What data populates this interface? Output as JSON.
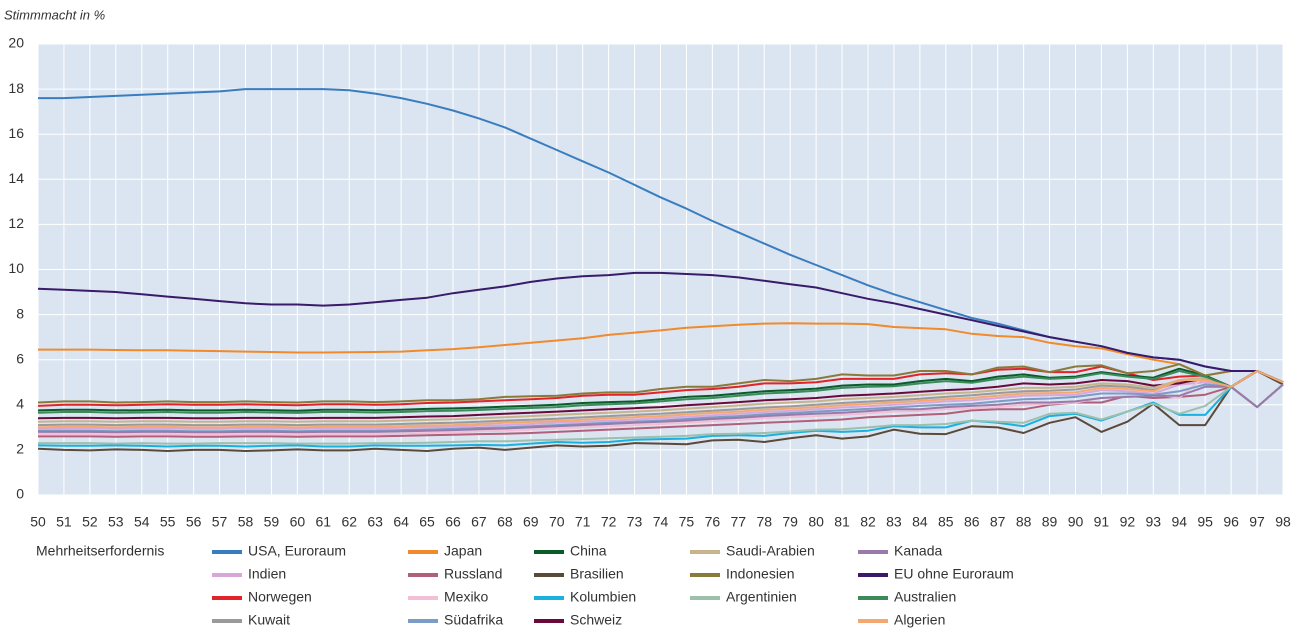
{
  "chart_data": {
    "type": "line",
    "y_label": "Stimmmacht in %",
    "legend_title": "Mehrheitserfordernis",
    "categories": [
      "50",
      "51",
      "52",
      "53",
      "54",
      "55",
      "56",
      "57",
      "58",
      "59",
      "60",
      "61",
      "62",
      "63",
      "64",
      "65",
      "66",
      "67",
      "68",
      "69",
      "70",
      "71",
      "72",
      "73",
      "74",
      "75",
      "76",
      "77",
      "78",
      "79",
      "80",
      "81",
      "82",
      "83",
      "84",
      "85",
      "86",
      "87",
      "88",
      "89",
      "90",
      "91",
      "92",
      "93",
      "94",
      "95",
      "96",
      "97",
      "98"
    ],
    "ylim": [
      0,
      20
    ],
    "yticks": [
      0,
      2,
      4,
      6,
      8,
      10,
      12,
      14,
      16,
      18,
      20
    ],
    "grid": true,
    "series": [
      {
        "name": "USA, Euroraum",
        "color": "#3a7dbf",
        "values": [
          17.6,
          17.6,
          17.65,
          17.7,
          17.75,
          17.8,
          17.85,
          17.9,
          18,
          18,
          18,
          18,
          17.95,
          17.8,
          17.6,
          17.35,
          17.05,
          16.7,
          16.3,
          15.8,
          15.3,
          14.8,
          14.3,
          13.75,
          13.2,
          12.7,
          12.15,
          11.65,
          11.15,
          10.65,
          10.2,
          9.75,
          9.3,
          8.9,
          8.55,
          8.2,
          7.85,
          7.6,
          7.3,
          7.0,
          6.8,
          6.6,
          6.3,
          6.1,
          6.0,
          5.7,
          5.5,
          5.5,
          5.0
        ]
      },
      {
        "name": "Indien",
        "color": "#d9a6d9",
        "values": [
          2.95,
          2.95,
          2.95,
          2.93,
          2.95,
          2.95,
          2.93,
          2.93,
          2.95,
          2.95,
          2.93,
          2.95,
          2.95,
          2.95,
          2.98,
          3.0,
          3.03,
          3.07,
          3.1,
          3.15,
          3.2,
          3.25,
          3.3,
          3.35,
          3.4,
          3.47,
          3.54,
          3.6,
          3.68,
          3.73,
          3.8,
          3.88,
          3.94,
          4.0,
          4.07,
          4.15,
          4.2,
          4.3,
          4.4,
          4.42,
          4.45,
          4.65,
          4.6,
          4.5,
          4.9,
          5.0,
          4.8,
          3.9,
          4.9
        ]
      },
      {
        "name": "Norwegen",
        "color": "#e0242a",
        "values": [
          3.95,
          4.0,
          4.0,
          3.98,
          4.0,
          4.02,
          4.0,
          4.0,
          4.02,
          4.0,
          3.98,
          4.02,
          4.02,
          4.0,
          4.02,
          4.08,
          4.1,
          4.15,
          4.2,
          4.25,
          4.3,
          4.4,
          4.45,
          4.45,
          4.55,
          4.65,
          4.7,
          4.8,
          4.95,
          4.95,
          5.0,
          5.15,
          5.15,
          5.15,
          5.35,
          5.4,
          5.35,
          5.55,
          5.6,
          5.45,
          5.45,
          5.7,
          5.4,
          5.1,
          5.25,
          5.3,
          4.8,
          5.5,
          5.0
        ]
      },
      {
        "name": "Kuwait",
        "color": "#9a9a9a",
        "values": [
          3.1,
          3.12,
          3.12,
          3.1,
          3.12,
          3.12,
          3.1,
          3.1,
          3.12,
          3.12,
          3.1,
          3.12,
          3.12,
          3.12,
          3.15,
          3.18,
          3.2,
          3.25,
          3.3,
          3.34,
          3.38,
          3.44,
          3.5,
          3.55,
          3.6,
          3.67,
          3.74,
          3.8,
          3.88,
          3.93,
          4.0,
          4.08,
          4.14,
          4.2,
          4.27,
          4.35,
          4.42,
          4.52,
          4.6,
          4.62,
          4.68,
          4.85,
          4.8,
          4.65,
          5.0,
          5.1,
          4.8,
          3.9,
          4.9
        ]
      },
      {
        "name": "Japan",
        "color": "#f08a2c",
        "values": [
          6.45,
          6.45,
          6.45,
          6.43,
          6.42,
          6.42,
          6.4,
          6.38,
          6.36,
          6.34,
          6.32,
          6.32,
          6.33,
          6.34,
          6.36,
          6.42,
          6.47,
          6.55,
          6.65,
          6.75,
          6.85,
          6.95,
          7.1,
          7.2,
          7.3,
          7.42,
          7.48,
          7.55,
          7.6,
          7.62,
          7.6,
          7.6,
          7.58,
          7.45,
          7.4,
          7.35,
          7.15,
          7.05,
          7.0,
          6.75,
          6.6,
          6.5,
          6.25,
          6.0,
          5.8,
          5.3,
          5.5,
          5.5,
          5.0
        ]
      },
      {
        "name": "Russland",
        "color": "#b0607a",
        "values": [
          2.6,
          2.6,
          2.6,
          2.58,
          2.6,
          2.6,
          2.58,
          2.58,
          2.6,
          2.6,
          2.58,
          2.6,
          2.6,
          2.6,
          2.62,
          2.65,
          2.67,
          2.7,
          2.72,
          2.75,
          2.8,
          2.85,
          2.9,
          2.95,
          3.0,
          3.05,
          3.1,
          3.15,
          3.2,
          3.25,
          3.3,
          3.35,
          3.45,
          3.5,
          3.55,
          3.6,
          3.75,
          3.8,
          3.8,
          4.0,
          4.1,
          4.1,
          4.4,
          4.3,
          4.35,
          4.45,
          4.8,
          3.9,
          4.9
        ]
      },
      {
        "name": "Mexiko",
        "color": "#f2bfd6",
        "values": [
          2.7,
          2.7,
          2.7,
          2.68,
          2.7,
          2.7,
          2.68,
          2.68,
          2.7,
          2.7,
          2.68,
          2.7,
          2.7,
          2.7,
          2.72,
          2.75,
          2.78,
          2.82,
          2.85,
          2.9,
          2.95,
          3.0,
          3.05,
          3.1,
          3.15,
          3.2,
          3.27,
          3.32,
          3.4,
          3.45,
          3.5,
          3.55,
          3.62,
          3.7,
          3.72,
          3.8,
          3.85,
          3.9,
          4.0,
          4.05,
          4.1,
          4.3,
          4.4,
          4.5,
          4.3,
          5.3,
          4.8,
          3.9,
          4.9
        ]
      },
      {
        "name": "Südafrika",
        "color": "#7a9cc6",
        "values": [
          2.85,
          2.85,
          2.85,
          2.83,
          2.85,
          2.85,
          2.83,
          2.83,
          2.85,
          2.85,
          2.83,
          2.85,
          2.85,
          2.85,
          2.88,
          2.9,
          2.93,
          2.97,
          3.0,
          3.05,
          3.1,
          3.15,
          3.2,
          3.25,
          3.3,
          3.37,
          3.44,
          3.5,
          3.58,
          3.63,
          3.7,
          3.76,
          3.82,
          3.88,
          3.95,
          4.0,
          4.05,
          4.15,
          4.25,
          4.28,
          4.35,
          4.5,
          4.5,
          4.45,
          4.6,
          4.9,
          4.8,
          3.9,
          4.9
        ]
      },
      {
        "name": "China",
        "color": "#0a5a2a",
        "values": [
          3.75,
          3.78,
          3.78,
          3.75,
          3.76,
          3.78,
          3.75,
          3.75,
          3.78,
          3.76,
          3.74,
          3.78,
          3.78,
          3.76,
          3.78,
          3.82,
          3.84,
          3.87,
          3.92,
          3.96,
          4.0,
          4.08,
          4.12,
          4.15,
          4.25,
          4.35,
          4.4,
          4.5,
          4.6,
          4.65,
          4.72,
          4.85,
          4.9,
          4.9,
          5.05,
          5.15,
          5.05,
          5.25,
          5.35,
          5.2,
          5.25,
          5.45,
          5.3,
          5.2,
          5.6,
          5.3,
          4.8,
          5.5,
          5.0
        ]
      },
      {
        "name": "Brasilien",
        "color": "#5a4a3a",
        "values": [
          2.05,
          2.0,
          1.98,
          2.02,
          2.0,
          1.95,
          2.0,
          2.0,
          1.95,
          1.98,
          2.02,
          1.98,
          1.98,
          2.05,
          2.0,
          1.95,
          2.05,
          2.1,
          2.0,
          2.1,
          2.2,
          2.15,
          2.18,
          2.3,
          2.28,
          2.25,
          2.42,
          2.45,
          2.35,
          2.52,
          2.65,
          2.5,
          2.6,
          2.9,
          2.72,
          2.7,
          3.05,
          3.0,
          2.75,
          3.2,
          3.45,
          2.8,
          3.25,
          4.05,
          3.1,
          3.1,
          4.8,
          5.5,
          4.9
        ]
      },
      {
        "name": "Kolumbien",
        "color": "#1ab0e0",
        "values": [
          2.2,
          2.18,
          2.18,
          2.2,
          2.18,
          2.15,
          2.18,
          2.18,
          2.15,
          2.18,
          2.2,
          2.15,
          2.15,
          2.2,
          2.18,
          2.18,
          2.2,
          2.22,
          2.2,
          2.28,
          2.35,
          2.32,
          2.35,
          2.45,
          2.48,
          2.5,
          2.62,
          2.65,
          2.62,
          2.75,
          2.85,
          2.8,
          2.85,
          3.05,
          3.0,
          3.0,
          3.3,
          3.2,
          3.05,
          3.5,
          3.6,
          3.3,
          3.7,
          4.1,
          3.55,
          3.55,
          4.8,
          3.9,
          4.9
        ]
      },
      {
        "name": "Schweiz",
        "color": "#6a0a3a",
        "values": [
          3.4,
          3.42,
          3.42,
          3.4,
          3.42,
          3.42,
          3.4,
          3.4,
          3.42,
          3.42,
          3.4,
          3.42,
          3.42,
          3.42,
          3.45,
          3.48,
          3.5,
          3.55,
          3.6,
          3.65,
          3.7,
          3.75,
          3.8,
          3.85,
          3.9,
          3.98,
          4.05,
          4.12,
          4.2,
          4.25,
          4.3,
          4.4,
          4.45,
          4.5,
          4.58,
          4.65,
          4.7,
          4.8,
          4.95,
          4.9,
          4.95,
          5.1,
          5.05,
          4.85,
          4.95,
          5.2,
          4.8,
          5.5,
          5.0
        ]
      },
      {
        "name": "Saudi-Arabien",
        "color": "#c8b48c",
        "values": [
          3.25,
          3.27,
          3.27,
          3.25,
          3.27,
          3.27,
          3.25,
          3.25,
          3.27,
          3.27,
          3.25,
          3.27,
          3.27,
          3.27,
          3.3,
          3.33,
          3.36,
          3.4,
          3.45,
          3.5,
          3.55,
          3.6,
          3.65,
          3.7,
          3.75,
          3.83,
          3.9,
          3.97,
          4.05,
          4.1,
          4.15,
          4.25,
          4.3,
          4.35,
          4.42,
          4.5,
          4.55,
          4.65,
          4.75,
          4.75,
          4.8,
          4.95,
          4.9,
          4.75,
          5.1,
          5.2,
          4.8,
          3.9,
          4.9
        ]
      },
      {
        "name": "Indonesien",
        "color": "#8a7a3a",
        "values": [
          4.1,
          4.15,
          4.15,
          4.1,
          4.12,
          4.15,
          4.12,
          4.12,
          4.15,
          4.12,
          4.1,
          4.15,
          4.15,
          4.12,
          4.15,
          4.2,
          4.2,
          4.25,
          4.35,
          4.38,
          4.4,
          4.5,
          4.55,
          4.55,
          4.7,
          4.8,
          4.8,
          4.95,
          5.1,
          5.05,
          5.15,
          5.35,
          5.3,
          5.3,
          5.5,
          5.5,
          5.35,
          5.65,
          5.7,
          5.45,
          5.7,
          5.75,
          5.4,
          5.5,
          5.8,
          5.3,
          5.5,
          5.5,
          5.0
        ]
      },
      {
        "name": "Argentinien",
        "color": "#9cc0ac",
        "values": [
          2.3,
          2.3,
          2.3,
          2.28,
          2.3,
          2.28,
          2.28,
          2.3,
          2.3,
          2.3,
          2.28,
          2.28,
          2.28,
          2.3,
          2.3,
          2.32,
          2.35,
          2.38,
          2.38,
          2.42,
          2.45,
          2.48,
          2.52,
          2.55,
          2.58,
          2.62,
          2.7,
          2.72,
          2.75,
          2.82,
          2.9,
          2.92,
          3.0,
          3.1,
          3.1,
          3.15,
          3.3,
          3.25,
          3.2,
          3.6,
          3.65,
          3.35,
          3.7,
          4.05,
          3.6,
          3.95,
          4.8,
          3.9,
          4.9
        ]
      },
      {
        "name": "Kanada",
        "color": "#9a7aaa",
        "values": [
          2.8,
          2.8,
          2.8,
          2.78,
          2.8,
          2.8,
          2.78,
          2.78,
          2.8,
          2.8,
          2.78,
          2.8,
          2.8,
          2.8,
          2.82,
          2.85,
          2.88,
          2.92,
          2.95,
          3.0,
          3.05,
          3.1,
          3.15,
          3.2,
          3.25,
          3.3,
          3.37,
          3.42,
          3.5,
          3.55,
          3.6,
          3.65,
          3.72,
          3.8,
          3.8,
          3.9,
          3.95,
          4.0,
          4.1,
          4.1,
          4.15,
          4.3,
          4.35,
          4.4,
          4.4,
          4.8,
          4.8,
          3.9,
          4.9
        ]
      },
      {
        "name": "EU ohne Euroraum",
        "color": "#3a1a6a",
        "values": [
          9.15,
          9.1,
          9.05,
          9.0,
          8.9,
          8.8,
          8.7,
          8.6,
          8.5,
          8.45,
          8.45,
          8.4,
          8.45,
          8.55,
          8.65,
          8.75,
          8.95,
          9.1,
          9.25,
          9.45,
          9.6,
          9.7,
          9.75,
          9.85,
          9.85,
          9.8,
          9.75,
          9.65,
          9.5,
          9.35,
          9.2,
          8.95,
          8.7,
          8.5,
          8.25,
          8.0,
          7.75,
          7.5,
          7.25,
          7.0,
          6.8,
          6.6,
          6.3,
          6.1,
          6.0,
          5.7,
          5.5,
          5.5,
          5.0
        ]
      },
      {
        "name": "Australien",
        "color": "#3a8a5a",
        "values": [
          3.65,
          3.68,
          3.68,
          3.65,
          3.66,
          3.68,
          3.65,
          3.65,
          3.68,
          3.66,
          3.64,
          3.68,
          3.68,
          3.66,
          3.68,
          3.72,
          3.74,
          3.77,
          3.82,
          3.86,
          3.9,
          3.98,
          4.02,
          4.06,
          4.15,
          4.25,
          4.3,
          4.4,
          4.5,
          4.55,
          4.62,
          4.75,
          4.8,
          4.82,
          4.95,
          5.05,
          4.98,
          5.15,
          5.25,
          5.15,
          5.2,
          5.4,
          5.25,
          5.15,
          5.5,
          5.25,
          4.8,
          5.5,
          5.0
        ]
      },
      {
        "name": "Algerien",
        "color": "#f4a870",
        "values": [
          3.0,
          3.02,
          3.02,
          3.0,
          3.02,
          3.02,
          3.0,
          3.0,
          3.02,
          3.02,
          3.0,
          3.02,
          3.02,
          3.02,
          3.05,
          3.08,
          3.1,
          3.15,
          3.2,
          3.24,
          3.28,
          3.34,
          3.4,
          3.45,
          3.5,
          3.57,
          3.64,
          3.7,
          3.78,
          3.83,
          3.9,
          3.98,
          4.04,
          4.1,
          4.17,
          4.25,
          4.3,
          4.4,
          4.5,
          4.52,
          4.55,
          4.75,
          4.7,
          4.6,
          5.1,
          5.1,
          4.8,
          5.5,
          5.0
        ]
      }
    ]
  }
}
